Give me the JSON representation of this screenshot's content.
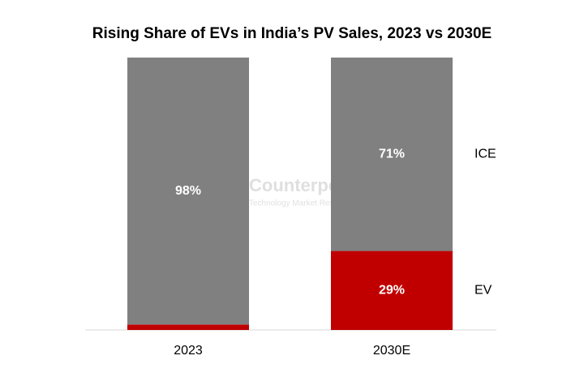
{
  "chart_data": {
    "type": "stacked_bar",
    "title": "Rising Share of EVs in India’s PV Sales, 2023 vs 2030E",
    "categories": [
      "2023",
      "2030E"
    ],
    "series": [
      {
        "name": "EV",
        "color": "#c00000",
        "values": [
          2,
          29
        ],
        "value_labels": [
          null,
          "29%"
        ]
      },
      {
        "name": "ICE",
        "color": "#808080",
        "values": [
          98,
          71
        ],
        "value_labels": [
          "98%",
          "71%"
        ]
      }
    ],
    "watermark": [
      "Counterpoint",
      "Technology Market Research"
    ]
  }
}
